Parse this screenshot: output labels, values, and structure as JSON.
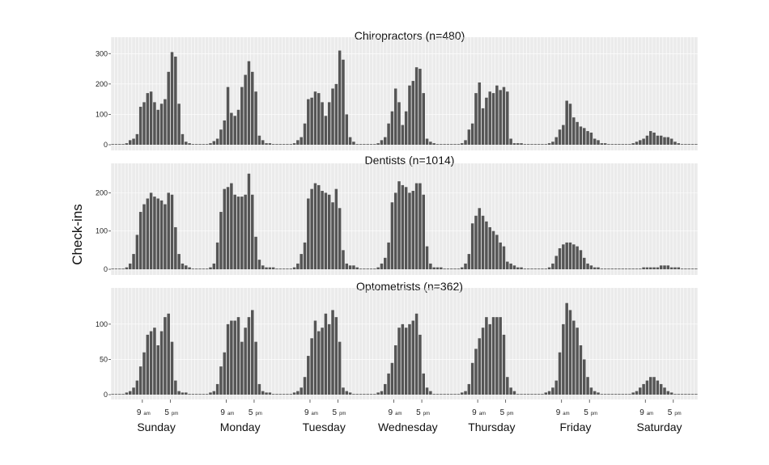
{
  "chart_data": {
    "type": "bar",
    "ylabel": "Check-ins",
    "days": [
      "Sunday",
      "Monday",
      "Tuesday",
      "Wednesday",
      "Thursday",
      "Friday",
      "Saturday"
    ],
    "x_ticks": [
      {
        "hour": 9,
        "num": "9",
        "suffix": "am"
      },
      {
        "hour": 17,
        "num": "5",
        "suffix": "pm"
      }
    ],
    "hours_per_day": 24,
    "panels": [
      {
        "title": "Chiropractors (n=480)",
        "ylim": [
          0,
          330
        ],
        "yticks": [
          0,
          100,
          200,
          300
        ],
        "days": [
          [
            0,
            0,
            0,
            0,
            5,
            15,
            20,
            35,
            125,
            140,
            170,
            175,
            140,
            115,
            135,
            150,
            240,
            305,
            290,
            135,
            35,
            10,
            5,
            0
          ],
          [
            0,
            0,
            0,
            0,
            5,
            12,
            20,
            50,
            80,
            190,
            105,
            95,
            115,
            190,
            230,
            275,
            240,
            175,
            30,
            15,
            5,
            5,
            0,
            0
          ],
          [
            0,
            0,
            0,
            0,
            5,
            15,
            25,
            70,
            150,
            155,
            175,
            170,
            140,
            95,
            140,
            185,
            200,
            310,
            280,
            100,
            25,
            10,
            0,
            0
          ],
          [
            0,
            0,
            0,
            0,
            5,
            15,
            25,
            70,
            110,
            185,
            140,
            65,
            110,
            195,
            210,
            255,
            250,
            170,
            20,
            10,
            5,
            0,
            0,
            0
          ],
          [
            0,
            0,
            0,
            0,
            5,
            15,
            50,
            70,
            170,
            205,
            120,
            155,
            175,
            170,
            195,
            180,
            190,
            175,
            20,
            5,
            5,
            5,
            0,
            0
          ],
          [
            0,
            0,
            0,
            0,
            0,
            5,
            10,
            25,
            50,
            65,
            145,
            135,
            90,
            75,
            60,
            55,
            45,
            40,
            20,
            15,
            5,
            5,
            0,
            0
          ],
          [
            0,
            0,
            0,
            0,
            0,
            5,
            10,
            15,
            20,
            30,
            45,
            40,
            30,
            30,
            25,
            25,
            20,
            10,
            5,
            0,
            0,
            0,
            0,
            0
          ]
        ]
      },
      {
        "title": "Dentists (n=1014)",
        "ylim": [
          0,
          260
        ],
        "yticks": [
          0,
          100,
          200
        ],
        "days": [
          [
            0,
            0,
            0,
            0,
            5,
            15,
            40,
            90,
            150,
            170,
            185,
            200,
            190,
            185,
            180,
            170,
            200,
            195,
            110,
            40,
            15,
            10,
            5,
            0
          ],
          [
            0,
            0,
            0,
            0,
            5,
            15,
            70,
            150,
            210,
            215,
            225,
            195,
            190,
            190,
            195,
            250,
            195,
            85,
            25,
            10,
            5,
            5,
            5,
            0
          ],
          [
            0,
            0,
            0,
            0,
            5,
            15,
            40,
            70,
            185,
            210,
            225,
            220,
            205,
            200,
            195,
            175,
            210,
            160,
            50,
            15,
            10,
            10,
            5,
            0
          ],
          [
            0,
            0,
            0,
            0,
            5,
            15,
            30,
            70,
            175,
            200,
            230,
            220,
            215,
            200,
            205,
            225,
            225,
            195,
            60,
            15,
            5,
            5,
            5,
            0
          ],
          [
            0,
            0,
            0,
            0,
            5,
            15,
            40,
            120,
            140,
            160,
            140,
            125,
            110,
            100,
            90,
            70,
            60,
            20,
            15,
            10,
            5,
            5,
            0,
            0
          ],
          [
            0,
            0,
            0,
            0,
            0,
            5,
            15,
            35,
            55,
            65,
            70,
            70,
            65,
            60,
            50,
            30,
            15,
            10,
            5,
            5,
            0,
            0,
            0,
            0
          ],
          [
            0,
            0,
            0,
            0,
            0,
            0,
            0,
            0,
            5,
            5,
            5,
            5,
            5,
            10,
            10,
            10,
            5,
            5,
            5,
            0,
            0,
            0,
            0,
            0
          ]
        ]
      },
      {
        "title": "Optometrists (n=362)",
        "ylim": [
          0,
          140
        ],
        "yticks": [
          0,
          50,
          100
        ],
        "days": [
          [
            0,
            0,
            0,
            0,
            3,
            5,
            10,
            20,
            40,
            60,
            85,
            90,
            95,
            70,
            90,
            110,
            115,
            75,
            20,
            5,
            3,
            3,
            0,
            0
          ],
          [
            0,
            0,
            0,
            0,
            3,
            5,
            15,
            40,
            60,
            100,
            105,
            105,
            110,
            75,
            95,
            110,
            120,
            75,
            15,
            5,
            3,
            3,
            0,
            0
          ],
          [
            0,
            0,
            0,
            0,
            3,
            5,
            10,
            25,
            55,
            80,
            105,
            90,
            95,
            115,
            100,
            120,
            110,
            75,
            10,
            5,
            3,
            0,
            0,
            0
          ],
          [
            0,
            0,
            0,
            0,
            3,
            5,
            15,
            30,
            45,
            70,
            95,
            100,
            95,
            100,
            105,
            115,
            85,
            30,
            10,
            5,
            0,
            0,
            0,
            0
          ],
          [
            0,
            0,
            0,
            0,
            3,
            5,
            15,
            45,
            65,
            80,
            95,
            110,
            100,
            110,
            110,
            110,
            85,
            25,
            10,
            5,
            0,
            0,
            0,
            0
          ],
          [
            0,
            0,
            0,
            0,
            3,
            5,
            10,
            20,
            60,
            100,
            130,
            120,
            105,
            95,
            70,
            50,
            25,
            10,
            5,
            3,
            0,
            0,
            0,
            0
          ],
          [
            0,
            0,
            0,
            0,
            0,
            3,
            5,
            10,
            15,
            20,
            25,
            25,
            20,
            15,
            10,
            5,
            3,
            0,
            0,
            0,
            0,
            0,
            0,
            0
          ]
        ]
      }
    ]
  }
}
